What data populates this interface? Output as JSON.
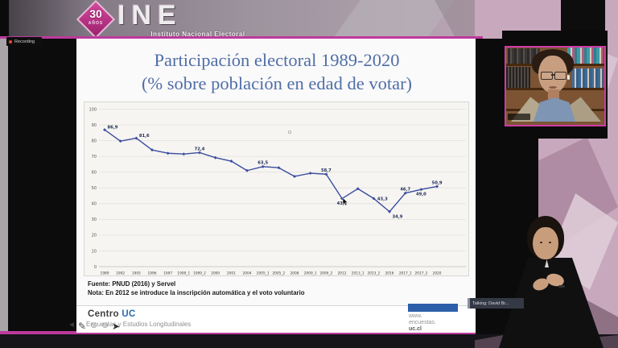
{
  "branding": {
    "years_badge": "30",
    "years_badge_sub": "AÑOS",
    "logo": "INE",
    "logo_subtitle": "Instituto Nacional Electoral"
  },
  "status": {
    "recording_label": "Recording",
    "talking_label": "Talking: David Br..."
  },
  "slide": {
    "title_line1": "Participación electoral 1989-2020",
    "title_line2": "(% sobre población en edad de votar)",
    "source": "Fuente: PNUD (2016) y Servel",
    "note": "Nota: En 2012 se introduce la inscripción automática y el voto voluntario"
  },
  "chart_data": {
    "type": "line",
    "title": "Participación electoral 1989-2020 (% sobre población en edad de votar)",
    "xlabel": "",
    "ylabel": "",
    "ylim": [
      0,
      100
    ],
    "ytick_step": 10,
    "grid": true,
    "legend": false,
    "line_color": "#3c4d9f",
    "marker": "diamond",
    "categories": [
      "1989",
      "1992",
      "1993",
      "1996",
      "1997",
      "1999_1",
      "1999_2",
      "2000",
      "2001",
      "2004",
      "2005_1",
      "2005_2",
      "2008",
      "2009_1",
      "2009_2",
      "2012",
      "2013_1",
      "2013_2",
      "2016",
      "2017_1",
      "2017_2",
      "2020"
    ],
    "values": [
      86.9,
      79.7,
      81.6,
      74.1,
      72.0,
      71.5,
      72.4,
      69.2,
      67.0,
      61.0,
      63.5,
      62.8,
      57.3,
      59.3,
      58.7,
      43.2,
      49.5,
      43.3,
      34.9,
      46.7,
      49.0,
      50.9
    ],
    "point_labels": [
      {
        "index": 0,
        "text": "86,9",
        "pos": "right-above"
      },
      {
        "index": 2,
        "text": "81,6",
        "pos": "right-above"
      },
      {
        "index": 6,
        "text": "72,4",
        "pos": "above"
      },
      {
        "index": 10,
        "text": "63,5",
        "pos": "above"
      },
      {
        "index": 14,
        "text": "58,7",
        "pos": "above"
      },
      {
        "index": 15,
        "text": "43,2",
        "pos": "below"
      },
      {
        "index": 17,
        "text": "43,3",
        "pos": "right"
      },
      {
        "index": 18,
        "text": "34,9",
        "pos": "below-right"
      },
      {
        "index": 19,
        "text": "46,7",
        "pos": "above"
      },
      {
        "index": 20,
        "text": "49,0",
        "pos": "below"
      },
      {
        "index": 21,
        "text": "50,9",
        "pos": "above"
      }
    ]
  },
  "footer": {
    "brand": "Centro ",
    "brand_accent": "UC",
    "brand_sub": "Encuestas y Estudios Longitudinales",
    "website_lines": [
      "www.",
      "encuestas.",
      "uc.cl"
    ]
  },
  "toolbar": {
    "icons": [
      {
        "name": "pointer-arrow-icon",
        "glyph": "◄"
      },
      {
        "name": "pencil-icon",
        "glyph": "✎"
      },
      {
        "name": "smiley-stamp-icon",
        "glyph": "☺"
      },
      {
        "name": "smiley-stamp-icon-2",
        "glyph": "☺"
      },
      {
        "name": "arrow-stamp-icon",
        "glyph": "➤"
      }
    ]
  }
}
